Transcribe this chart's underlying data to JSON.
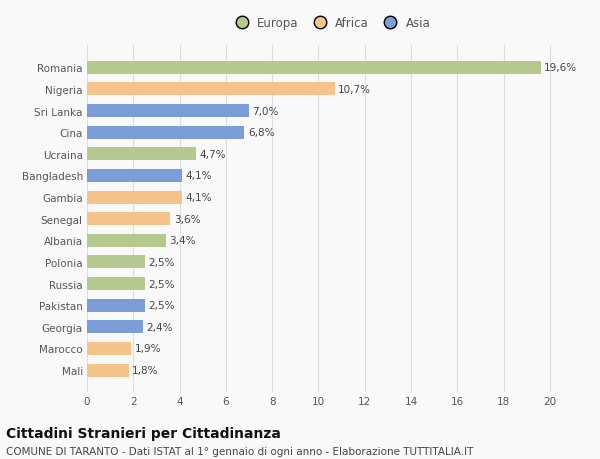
{
  "categories": [
    "Mali",
    "Marocco",
    "Georgia",
    "Pakistan",
    "Russia",
    "Polonia",
    "Albania",
    "Senegal",
    "Gambia",
    "Bangladesh",
    "Ucraina",
    "Cina",
    "Sri Lanka",
    "Nigeria",
    "Romania"
  ],
  "values": [
    1.8,
    1.9,
    2.4,
    2.5,
    2.5,
    2.5,
    3.4,
    3.6,
    4.1,
    4.1,
    4.7,
    6.8,
    7.0,
    10.7,
    19.6
  ],
  "colors": [
    "#f5c48a",
    "#f5c48a",
    "#7b9ed9",
    "#7b9ed9",
    "#b5c98e",
    "#b5c98e",
    "#b5c98e",
    "#f5c48a",
    "#f5c48a",
    "#7b9ed9",
    "#b5c98e",
    "#7b9ed9",
    "#7b9ed9",
    "#f5c48a",
    "#b5c98e"
  ],
  "labels": [
    "1,8%",
    "1,9%",
    "2,4%",
    "2,5%",
    "2,5%",
    "2,5%",
    "3,4%",
    "3,6%",
    "4,1%",
    "4,1%",
    "4,7%",
    "6,8%",
    "7,0%",
    "10,7%",
    "19,6%"
  ],
  "legend": [
    {
      "label": "Europa",
      "color": "#b5c98e"
    },
    {
      "label": "Africa",
      "color": "#f5c48a"
    },
    {
      "label": "Asia",
      "color": "#7b9ed9"
    }
  ],
  "title": "Cittadini Stranieri per Cittadinanza",
  "subtitle": "COMUNE DI TARANTO - Dati ISTAT al 1° gennaio di ogni anno - Elaborazione TUTTITALIA.IT",
  "xlim": [
    0,
    21
  ],
  "xticks": [
    0,
    2,
    4,
    6,
    8,
    10,
    12,
    14,
    16,
    18,
    20
  ],
  "background_color": "#f9f9f9",
  "grid_color": "#dddddd",
  "bar_height": 0.6,
  "label_fontsize": 7.5,
  "title_fontsize": 10,
  "subtitle_fontsize": 7.5,
  "tick_fontsize": 7.5,
  "legend_fontsize": 8.5
}
